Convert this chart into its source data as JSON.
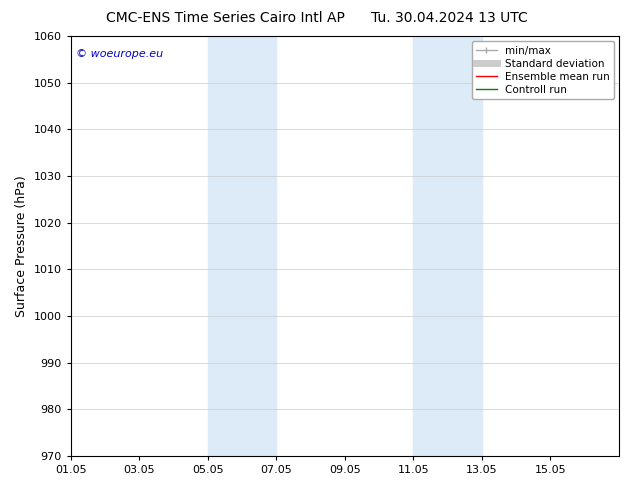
{
  "title_left": "CMC-ENS Time Series Cairo Intl AP",
  "title_right": "Tu. 30.04.2024 13 UTC",
  "ylabel": "Surface Pressure (hPa)",
  "ylim": [
    970,
    1060
  ],
  "yticks": [
    970,
    980,
    990,
    1000,
    1010,
    1020,
    1030,
    1040,
    1050,
    1060
  ],
  "xtick_labels": [
    "01.05",
    "03.05",
    "05.05",
    "07.05",
    "09.05",
    "11.05",
    "13.05",
    "15.05"
  ],
  "xtick_positions": [
    0,
    2,
    4,
    6,
    8,
    10,
    12,
    14
  ],
  "xlim": [
    0,
    16
  ],
  "shade_bands": [
    {
      "x_start": 4,
      "x_end": 6,
      "color": "#ddeaf7"
    },
    {
      "x_start": 10,
      "x_end": 12,
      "color": "#ddeaf7"
    }
  ],
  "watermark_text": "© woeurope.eu",
  "watermark_color": "#0000cc",
  "background_color": "#ffffff",
  "grid_color": "#cccccc",
  "title_fontsize": 10,
  "tick_fontsize": 8,
  "ylabel_fontsize": 9,
  "legend_fontsize": 7.5
}
